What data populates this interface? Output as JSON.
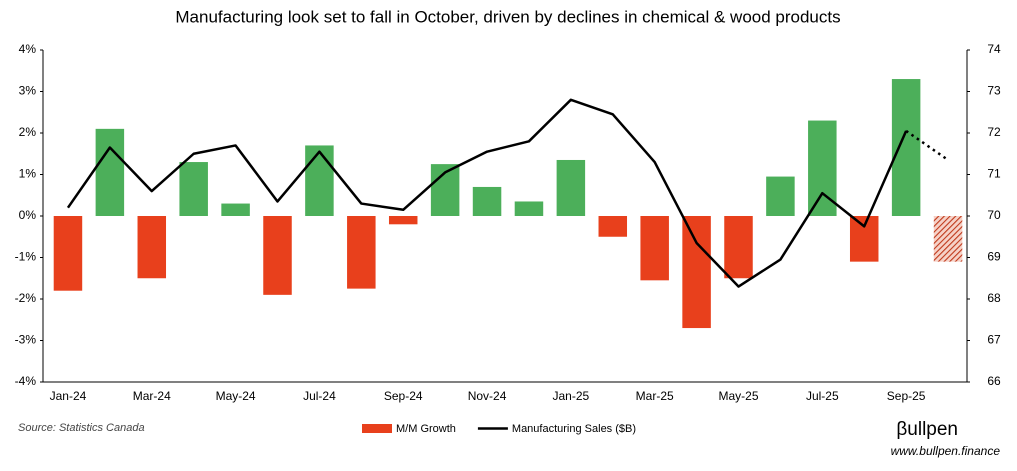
{
  "chart_data": {
    "type": "combo",
    "title": "Manufacturing look set to fall in October, driven by declines in chemical & wood products",
    "categories": [
      "Jan-24",
      null,
      "Mar-24",
      null,
      "May-24",
      null,
      "Jul-24",
      null,
      "Sep-24",
      null,
      "Nov-24",
      null,
      "Jan-25",
      null,
      "Mar-25",
      null,
      "May-25",
      null,
      "Jul-25",
      null,
      "Sep-25",
      null
    ],
    "series": [
      {
        "name": "M/M Growth",
        "type": "bar",
        "color_positive": "#4caf5a",
        "color_negative": "#e8401c",
        "values": [
          -1.8,
          2.1,
          -1.5,
          1.3,
          0.3,
          -1.9,
          1.7,
          -1.75,
          -0.2,
          1.25,
          0.7,
          0.35,
          1.35,
          -0.5,
          -1.55,
          -2.7,
          -1.5,
          0.95,
          2.3,
          -1.1,
          3.3,
          -1.1
        ]
      },
      {
        "name": "Manufacturing Sales ($B)",
        "type": "line",
        "axis": "y2",
        "color": "#000000",
        "values": [
          70.2,
          71.65,
          70.6,
          71.5,
          71.7,
          70.35,
          71.55,
          70.3,
          70.15,
          71.05,
          71.55,
          71.8,
          72.8,
          72.45,
          71.3,
          69.35,
          68.3,
          68.95,
          70.55,
          69.75,
          72.05,
          71.35
        ]
      }
    ],
    "projected_last": true,
    "ylim": [
      -4,
      4
    ],
    "yticks": [
      {
        "value": -4,
        "label": "-4%"
      },
      {
        "value": -3,
        "label": "-3%"
      },
      {
        "value": -2,
        "label": "-2%"
      },
      {
        "value": -1,
        "label": "-1%"
      },
      {
        "value": 0,
        "label": "0%"
      },
      {
        "value": 1,
        "label": "1%"
      },
      {
        "value": 2,
        "label": "2%"
      },
      {
        "value": 3,
        "label": "3%"
      },
      {
        "value": 4,
        "label": "4%"
      }
    ],
    "y2lim": [
      66,
      74
    ],
    "y2ticks": [
      66,
      67,
      68,
      69,
      70,
      71,
      72,
      73,
      74
    ],
    "legend": "bottom",
    "source": "Source: Statistics Canada",
    "brand": "βullpen",
    "website": "www.bullpen.finance"
  }
}
